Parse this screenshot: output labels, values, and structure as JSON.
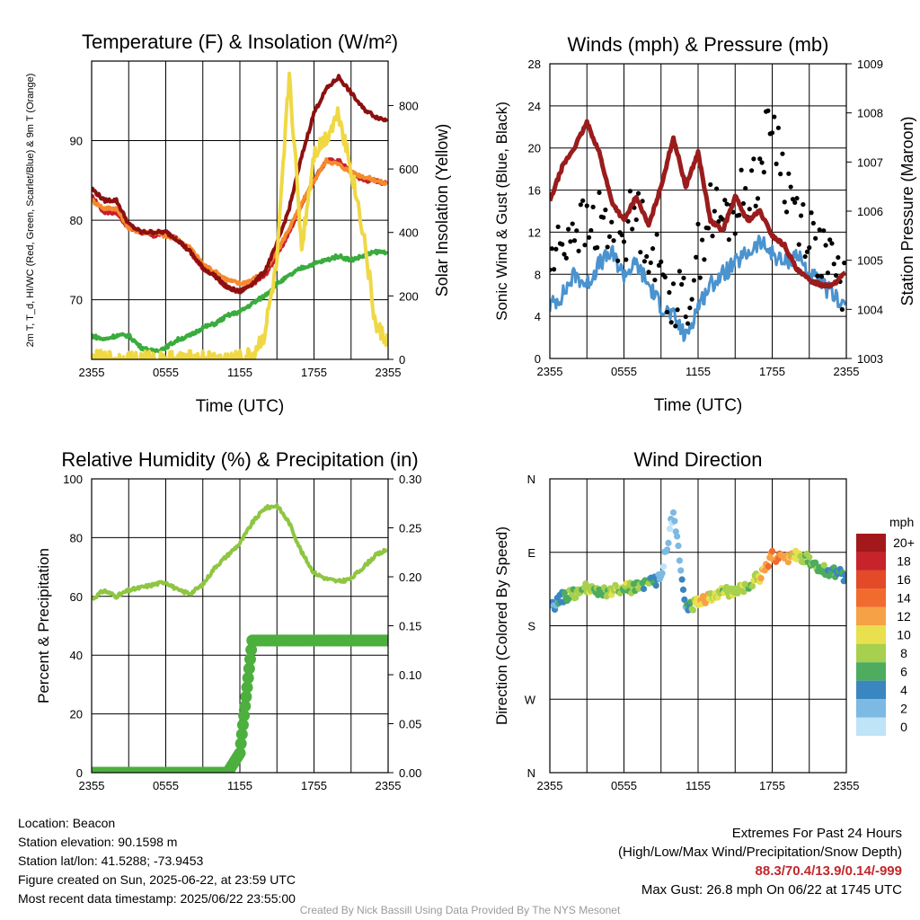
{
  "panels": {
    "temp": {
      "title": "Temperature (F) & Insolation (W/m²)",
      "ylabel_left": "2m T, T_d, HI/WC (Red, Green, Scarlet/Blue) & 9m T (Orange)",
      "ylabel_right": "Solar Insolation (Yellow)",
      "xlabel": "Time (UTC)"
    },
    "wind": {
      "title": "Winds (mph) & Pressure (mb)",
      "ylabel_left": "Sonic Wind & Gust (Blue, Black)",
      "ylabel_right": "Station Pressure (Maroon)",
      "xlabel": "Time (UTC)"
    },
    "rh": {
      "title": "Relative Humidity (%) & Precipitation (in)",
      "ylabel_left": "Percent & Precipitation"
    },
    "dir": {
      "title": "Wind Direction",
      "ylabel_left": "Direction (Colored By Speed)",
      "colorbar_unit": "mph",
      "colorbar_labels": [
        "20+",
        "18",
        "16",
        "14",
        "12",
        "10",
        "8",
        "6",
        "4",
        "2",
        "0"
      ],
      "colorbar_colors": [
        "#a3181b",
        "#c7232a",
        "#e24a28",
        "#f26b2e",
        "#f7a146",
        "#e8e04d",
        "#a6d04e",
        "#4dac5d",
        "#3a86c0",
        "#7cb9e3",
        "#bfe3f7"
      ]
    }
  },
  "info": {
    "location": "Location: Beacon",
    "elevation": "Station elevation: 90.1598 m",
    "latlon": "Station lat/lon: 41.5288; -73.9453",
    "created": "Figure created on Sun, 2025-06-22, at 23:59 UTC",
    "recent": "Most recent data timestamp: 2025/06/22 23:55:00",
    "extremes_title": "Extremes For Past 24 Hours",
    "extremes_sub": "(High/Low/Max Wind/Precipitation/Snow Depth)",
    "extremes_values": "88.3/70.4/13.9/0.14/-999",
    "max_gust": "Max Gust: 26.8 mph On 06/22 at 1745 UTC",
    "credit": "Created By Nick Bassill Using Data Provided By The NYS Mesonet"
  },
  "chart_data": [
    {
      "type": "line",
      "title": "Temperature (F) & Insolation (W/m²)",
      "xlabel": "Time (UTC)",
      "x_ticks": [
        "2355",
        "0555",
        "1155",
        "1755",
        "2355"
      ],
      "x": [
        0,
        1,
        2,
        3,
        4,
        5,
        6,
        7,
        8,
        9,
        10,
        11,
        12,
        13,
        14,
        15,
        16,
        17,
        18,
        19,
        20,
        21,
        22,
        23,
        24
      ],
      "y_left": {
        "ticks": [
          70,
          80,
          90
        ],
        "ylim": [
          62.5,
          100
        ]
      },
      "y_right": {
        "ticks": [
          0,
          200,
          400,
          600,
          800
        ],
        "ylim": [
          0,
          940
        ]
      },
      "series": [
        {
          "name": "2m T",
          "color": "#c8202a",
          "axis": "left",
          "values": [
            83,
            81,
            81,
            79,
            78.5,
            78,
            78.5,
            77.5,
            76,
            74,
            73,
            71.5,
            71,
            72,
            73,
            75.5,
            78.5,
            82,
            85,
            87.5,
            87.5,
            86,
            85,
            85,
            84.5
          ]
        },
        {
          "name": "9m T",
          "color": "#f58a2e",
          "axis": "left",
          "values": [
            82.5,
            81.5,
            81.5,
            79,
            78.5,
            78.5,
            78,
            77.5,
            76.5,
            74.5,
            73.5,
            72.5,
            72,
            72.5,
            73.5,
            76,
            79,
            82,
            85,
            87.5,
            87,
            86,
            85.5,
            85,
            84.5
          ]
        },
        {
          "name": "HI/WC",
          "color": "#8c1010",
          "axis": "left",
          "values": [
            84,
            82.5,
            82.5,
            79.5,
            78.5,
            78.5,
            78.5,
            77.5,
            76,
            74,
            73,
            71.5,
            71,
            72,
            73.5,
            77,
            81.5,
            88,
            93.5,
            96.5,
            98,
            96,
            94,
            93,
            92.5
          ]
        },
        {
          "name": "T_d",
          "color": "#3aac3e",
          "axis": "left",
          "values": [
            65.5,
            65,
            65.5,
            65.5,
            64,
            63.5,
            64,
            65,
            65.5,
            66.5,
            67,
            68,
            68.5,
            69.5,
            70.5,
            72,
            73,
            74,
            74.5,
            75,
            75.5,
            75,
            75.5,
            76,
            76
          ]
        },
        {
          "name": "Solar Insolation",
          "color": "#f0d845",
          "axis": "right",
          "values": [
            0,
            0,
            0,
            0,
            0,
            0,
            0,
            0,
            0,
            0,
            0,
            0,
            0,
            10,
            80,
            300,
            900,
            350,
            650,
            700,
            780,
            600,
            400,
            100,
            60
          ]
        }
      ]
    },
    {
      "type": "line",
      "title": "Winds (mph) & Pressure (mb)",
      "xlabel": "Time (UTC)",
      "x_ticks": [
        "2355",
        "0555",
        "1155",
        "1755",
        "2355"
      ],
      "x": [
        0,
        1,
        2,
        3,
        4,
        5,
        6,
        7,
        8,
        9,
        10,
        11,
        12,
        13,
        14,
        15,
        16,
        17,
        18,
        19,
        20,
        21,
        22,
        23,
        24
      ],
      "y_left": {
        "ticks": [
          0,
          4,
          8,
          12,
          16,
          20,
          24,
          28
        ],
        "ylim": [
          0,
          28
        ]
      },
      "y_right": {
        "ticks": [
          1003,
          1004,
          1005,
          1006,
          1007,
          1008,
          1009
        ],
        "ylim": [
          1003,
          1009
        ]
      },
      "series": [
        {
          "name": "Sonic Wind",
          "color": "#4a93cf",
          "axis": "left",
          "values": [
            5,
            6,
            8,
            7,
            9,
            10,
            8,
            9,
            7,
            5,
            4,
            2,
            5,
            7,
            8,
            9,
            10,
            11,
            10,
            9,
            10,
            8,
            7,
            6,
            5
          ]
        },
        {
          "name": "Gust",
          "color": "#000000",
          "axis": "left",
          "marker": "dot",
          "values": [
            9,
            11,
            13,
            12,
            13,
            12,
            12,
            14,
            11,
            8,
            6,
            5,
            10,
            14,
            13,
            14,
            16,
            18,
            23,
            17,
            14,
            12,
            10,
            8,
            7
          ]
        },
        {
          "name": "Station Pressure",
          "color": "#9a1c1c",
          "axis": "right",
          "values": [
            1006.2,
            1006.9,
            1007.3,
            1007.8,
            1007.2,
            1006.2,
            1005.8,
            1006.3,
            1005.7,
            1006.5,
            1007.5,
            1006.5,
            1007.2,
            1005.8,
            1005.6,
            1006.3,
            1005.8,
            1006.0,
            1005.5,
            1005.3,
            1004.8,
            1004.6,
            1004.5,
            1004.5,
            1004.8
          ]
        }
      ]
    },
    {
      "type": "line",
      "title": "Relative Humidity (%) & Precipitation (in)",
      "x_ticks": [
        "2355",
        "0555",
        "1155",
        "1755",
        "2355"
      ],
      "x": [
        0,
        1,
        2,
        3,
        4,
        5,
        6,
        7,
        8,
        9,
        10,
        11,
        12,
        13,
        14,
        15,
        16,
        17,
        18,
        19,
        20,
        21,
        22,
        23,
        24
      ],
      "y_left": {
        "ticks": [
          0,
          20,
          40,
          60,
          80,
          100
        ],
        "ylim": [
          0,
          100
        ]
      },
      "y_right": {
        "ticks": [
          0.0,
          0.05,
          0.1,
          0.15,
          0.2,
          0.25,
          0.3
        ],
        "tick_labels": [
          "0.00",
          "0.05",
          "0.10",
          "0.15",
          "0.20",
          "0.25",
          "0.30"
        ],
        "ylim": [
          0,
          0.3
        ]
      },
      "series": [
        {
          "name": "Relative Humidity",
          "color": "#8ec641",
          "axis": "left",
          "values": [
            59,
            62,
            60,
            62,
            63,
            64,
            65,
            62,
            61,
            64,
            70,
            74,
            78,
            85,
            90,
            91,
            85,
            75,
            68,
            66,
            65,
            66,
            70,
            74,
            76
          ]
        },
        {
          "name": "Precipitation",
          "color": "#4caf3e",
          "axis": "right",
          "marker": "dot",
          "values": [
            0,
            0,
            0,
            0,
            0,
            0,
            0,
            0,
            0,
            0,
            0,
            0,
            0.02,
            0.135,
            0.135,
            0.135,
            0.135,
            0.135,
            0.135,
            0.135,
            0.135,
            0.135,
            0.135,
            0.135,
            0.135
          ]
        }
      ]
    },
    {
      "type": "scatter",
      "title": "Wind Direction",
      "x_ticks": [
        "2355",
        "0555",
        "1155",
        "1755",
        "2355"
      ],
      "y_ticks": [
        "N",
        "W",
        "S",
        "E",
        "N"
      ],
      "ylim": [
        0,
        360
      ],
      "x": [
        0,
        1,
        2,
        3,
        4,
        5,
        6,
        7,
        8,
        9,
        10,
        11,
        12,
        13,
        14,
        15,
        16,
        17,
        18,
        19,
        20,
        21,
        22,
        23,
        24
      ],
      "series": [
        {
          "name": "Wind Direction",
          "values": [
            200,
            215,
            220,
            225,
            220,
            222,
            225,
            228,
            230,
            240,
            320,
            200,
            210,
            215,
            220,
            225,
            230,
            240,
            265,
            262,
            268,
            260,
            250,
            245,
            240
          ],
          "speed": [
            3,
            5,
            7,
            8,
            6,
            9,
            8,
            7,
            6,
            2,
            1,
            3,
            11,
            10,
            8,
            9,
            7,
            10,
            14,
            12,
            9,
            8,
            6,
            5,
            4
          ]
        }
      ]
    }
  ]
}
